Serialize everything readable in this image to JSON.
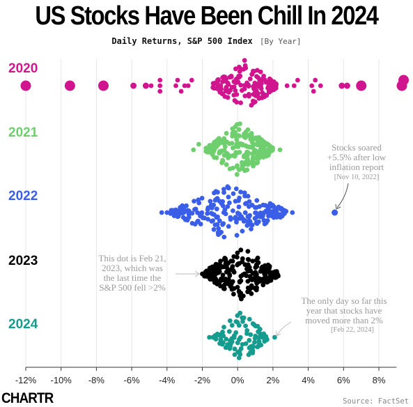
{
  "page": {
    "title": "US Stocks Have Been Chill In 2024",
    "subtitle": "Daily Returns, S&P 500 Index",
    "subtitle_note": "[By Year]",
    "logo": "CHARTR",
    "source": "Source: FactSet"
  },
  "chart_data": {
    "type": "scatter",
    "subtype": "beeswarm",
    "title": "US Stocks Have Been Chill In 2024",
    "subtitle": "Daily Returns, S&P 500 Index [By Year]",
    "xlabel": "",
    "ylabel": "",
    "xlim": [
      -12,
      9
    ],
    "x_ticks": [
      -12,
      -10,
      -8,
      -6,
      -4,
      -2,
      0,
      2,
      4,
      6,
      8
    ],
    "x_tick_labels": [
      "-12%",
      "-10%",
      "-8%",
      "-6%",
      "-4%",
      "-2%",
      "0%",
      "2%",
      "4%",
      "6%",
      "8%"
    ],
    "grid": "vertical",
    "series": [
      {
        "name": "2020",
        "color": "#d0158f",
        "core": {
          "center": 0.4,
          "halfwidth": 1.8,
          "count": 150
        },
        "points": [
          -12.0,
          -9.5,
          -7.6,
          -5.9,
          -5.2,
          -4.9,
          -4.4,
          -4.4,
          -4.4,
          -3.5,
          -3.4,
          -3.0,
          -2.8,
          -3.2,
          -2.6,
          2.8,
          3.2,
          3.4,
          4.2,
          4.4,
          4.7,
          4.3,
          5.9,
          6.2,
          7.0,
          9.3,
          9.4
        ]
      },
      {
        "name": "2021",
        "color": "#6fcf6f",
        "core": {
          "center": 0.1,
          "halfwidth": 1.9,
          "count": 230
        },
        "points": [
          -2.5,
          -2.2,
          2.4
        ]
      },
      {
        "name": "2022",
        "color": "#3a5ee8",
        "core": {
          "center": -0.5,
          "halfwidth": 3.3,
          "count": 240
        },
        "points": [
          -4.3,
          -4.0,
          -3.7,
          3.1,
          5.5
        ]
      },
      {
        "name": "2023",
        "color": "#000000",
        "core": {
          "center": 0.2,
          "halfwidth": 2.1,
          "count": 240
        },
        "points": [
          -2.0
        ]
      },
      {
        "name": "2024",
        "color": "#169b8f",
        "core": {
          "center": 0.2,
          "halfwidth": 1.5,
          "count": 100
        },
        "points": [
          -1.6,
          -1.4,
          1.4,
          2.1
        ]
      }
    ],
    "annotations": [
      {
        "text": "Stocks soared +5.5% after low inflation report",
        "date": "[Nov 10, 2022]",
        "series": "2022",
        "x": 5.5
      },
      {
        "text": "This dot is Feb 21, 2023, which was the last time the S&P 500 fell >2%",
        "series": "2023",
        "x": -2.0
      },
      {
        "text": "The only day so far this year that stocks have moved more than 2%",
        "date": "[Feb 22, 2024]",
        "series": "2024",
        "x": 2.1
      }
    ]
  }
}
